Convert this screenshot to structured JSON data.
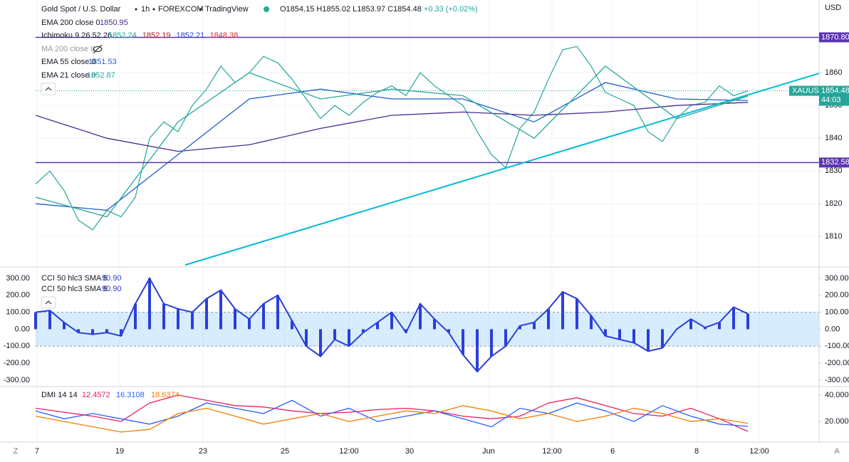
{
  "header": {
    "controls": [
      "Z",
      "A"
    ]
  },
  "chart_data": [
    {
      "type": "line",
      "title": "Gold Spot / U.S. Dollar",
      "interval": "1h",
      "source": "FOREXCOM",
      "platform": "TradingView",
      "ohlc": [
        "O1854.15",
        "H1855.02",
        "L1853.97",
        "C1854.48",
        "+0.33 (+0.02%)"
      ],
      "currency": "USD",
      "grid": true,
      "xlim": [
        0,
        110
      ],
      "ylim": [
        1800.7,
        1882.2
      ],
      "yticks": [
        1810,
        1820,
        1830,
        1840,
        1850,
        1860
      ],
      "xticks": [
        {
          "value": 0.2,
          "label": "7"
        },
        {
          "value": 11.8,
          "label": "19"
        },
        {
          "value": 23.5,
          "label": "23"
        },
        {
          "value": 35,
          "label": "25"
        },
        {
          "value": 44,
          "label": "12:00"
        },
        {
          "value": 52.5,
          "label": "30"
        },
        {
          "value": 63.6,
          "label": "Jun"
        },
        {
          "value": 72.5,
          "label": "12:00"
        },
        {
          "value": 81,
          "label": "6"
        },
        {
          "value": 92.8,
          "label": "8"
        },
        {
          "value": 101.6,
          "label": "12:00"
        }
      ],
      "series": [
        {
          "name": "XAUUSD",
          "color": "#26a69a",
          "x": [
            0,
            2,
            4,
            6,
            8,
            10,
            12,
            14,
            16,
            18,
            20,
            22,
            24,
            26,
            28,
            30,
            32,
            34,
            36,
            38,
            40,
            42,
            44,
            46,
            48,
            50,
            52,
            54,
            56,
            58,
            60,
            62,
            64,
            66,
            68,
            70,
            72,
            74,
            76,
            78,
            80,
            82,
            84,
            86,
            88,
            90,
            92,
            94,
            96,
            98,
            100
          ],
          "values": [
            1826,
            1830,
            1824,
            1815,
            1812,
            1818,
            1816,
            1822,
            1840,
            1845,
            1842,
            1850,
            1855,
            1862,
            1857,
            1860,
            1865,
            1863,
            1858,
            1852,
            1846,
            1850,
            1847,
            1851,
            1854,
            1856,
            1853,
            1860,
            1856,
            1853,
            1850,
            1842,
            1835,
            1831,
            1843,
            1848,
            1858,
            1867,
            1868,
            1862,
            1854,
            1852,
            1850,
            1842,
            1839,
            1846,
            1850,
            1851,
            1856,
            1853,
            1854.48
          ]
        },
        {
          "name": "EMA 200 close 0",
          "color": "#4a2a8c",
          "x": [
            0,
            10,
            20,
            30,
            40,
            50,
            60,
            70,
            80,
            90,
            100
          ],
          "values": [
            1847,
            1840,
            1836,
            1838,
            1843,
            1847,
            1848,
            1847,
            1848,
            1850,
            1850.95
          ]
        },
        {
          "name": "EMA 55 close 0",
          "color": "#1e5fd0",
          "x": [
            0,
            10,
            20,
            30,
            40,
            50,
            60,
            70,
            80,
            90,
            100
          ],
          "values": [
            1820,
            1818,
            1835,
            1852,
            1855,
            1852,
            1852,
            1845,
            1857,
            1852,
            1851.53
          ]
        },
        {
          "name": "EMA 21 close 0",
          "color": "#26a69a",
          "x": [
            0,
            10,
            20,
            30,
            40,
            50,
            60,
            70,
            80,
            90,
            100
          ],
          "values": [
            1822,
            1816,
            1845,
            1860,
            1852,
            1855,
            1853,
            1840,
            1862,
            1846,
            1852.87
          ]
        }
      ],
      "indicators": [
        {
          "name": "Ichimoku 9 26 52 26",
          "values": [
            1852.24,
            1852.19,
            1852.21,
            1848.38
          ],
          "colors": [
            "#26a69a",
            "#b71c1c",
            "#1e3fd8",
            "#d32f2f"
          ]
        },
        {
          "name": "MA 200 close 0",
          "hidden": true
        }
      ],
      "levels": [
        {
          "value": 1870.8,
          "label": "1870.80"
        },
        {
          "value": 1832.58,
          "label": "1832.58"
        }
      ],
      "level_color": "#5e35b1",
      "trendline": {
        "x": [
          21,
          110
        ],
        "values": [
          1801.3,
          1859.8
        ],
        "color": "#00bcd4"
      },
      "countdown": "44:03"
    },
    {
      "type": "bar",
      "color": "#2a3fd8",
      "band": [
        -100,
        100
      ],
      "left_axis": true,
      "legend": [
        {
          "name": "CCI 50 hlc3 SMA 5",
          "value": "90.90"
        },
        {
          "name": "CCI 50 hlc3 SMA 5",
          "value": "90.90"
        }
      ],
      "xlim": [
        0,
        110
      ],
      "ylim": [
        -338,
        367
      ],
      "yticks": [
        {
          "value": 300,
          "label": "300.00"
        },
        {
          "value": 200,
          "label": "200.00"
        },
        {
          "value": 100,
          "label": "100.00"
        },
        {
          "value": 0,
          "label": "0.00"
        },
        {
          "value": -100,
          "label": "-100.00"
        },
        {
          "value": -200,
          "label": "-200.00"
        },
        {
          "value": -300,
          "label": "-300.00"
        }
      ],
      "x": [
        0,
        2,
        4,
        6,
        8,
        10,
        12,
        14,
        16,
        18,
        20,
        22,
        24,
        26,
        28,
        30,
        32,
        34,
        36,
        38,
        40,
        42,
        44,
        46,
        48,
        50,
        52,
        54,
        56,
        58,
        60,
        62,
        64,
        66,
        68,
        70,
        72,
        74,
        76,
        78,
        80,
        82,
        84,
        86,
        88,
        90,
        92,
        94,
        96,
        98,
        100
      ],
      "values": [
        100,
        110,
        40,
        -20,
        -30,
        -20,
        -40,
        150,
        300,
        150,
        120,
        100,
        180,
        230,
        120,
        60,
        150,
        200,
        50,
        -100,
        -160,
        -60,
        -100,
        -20,
        40,
        100,
        -20,
        150,
        60,
        -20,
        -150,
        -250,
        -160,
        -100,
        20,
        40,
        120,
        220,
        180,
        80,
        -40,
        -60,
        -80,
        -130,
        -110,
        0,
        60,
        10,
        40,
        130,
        90.9
      ]
    },
    {
      "type": "line",
      "title": "DMI 14 14",
      "xlim": [
        0,
        110
      ],
      "ylim": [
        4.9,
        46.5
      ],
      "yticks": [
        {
          "value": 40,
          "label": "40.0000"
        },
        {
          "value": 20,
          "label": "20.0000"
        }
      ],
      "series": [
        {
          "color": "#e91e63",
          "x": [
            0,
            4,
            8,
            12,
            16,
            20,
            24,
            28,
            32,
            36,
            40,
            44,
            48,
            52,
            56,
            60,
            64,
            68,
            72,
            76,
            80,
            84,
            88,
            92,
            96,
            100
          ],
          "values": [
            30,
            27,
            24,
            20,
            34,
            40,
            36,
            32,
            31,
            28,
            26,
            27,
            29,
            30,
            28,
            24,
            22,
            24,
            34,
            38,
            32,
            26,
            24,
            30,
            22,
            12.4572
          ]
        },
        {
          "color": "#2962ff",
          "x": [
            0,
            4,
            8,
            12,
            16,
            20,
            24,
            28,
            32,
            36,
            40,
            44,
            48,
            52,
            56,
            60,
            64,
            68,
            72,
            76,
            80,
            84,
            88,
            92,
            96,
            100
          ],
          "values": [
            28,
            22,
            26,
            22,
            18,
            24,
            34,
            30,
            26,
            36,
            24,
            30,
            20,
            24,
            28,
            22,
            16,
            30,
            26,
            34,
            28,
            20,
            32,
            24,
            18,
            16.3108
          ]
        },
        {
          "color": "#f57c00",
          "x": [
            0,
            4,
            8,
            12,
            16,
            20,
            24,
            28,
            32,
            36,
            40,
            44,
            48,
            52,
            56,
            60,
            64,
            68,
            72,
            76,
            80,
            84,
            88,
            92,
            96,
            100
          ],
          "values": [
            24,
            20,
            16,
            12,
            14,
            26,
            30,
            24,
            18,
            22,
            26,
            20,
            24,
            28,
            26,
            32,
            28,
            22,
            26,
            20,
            24,
            30,
            26,
            20,
            22,
            18.6374
          ]
        }
      ]
    }
  ]
}
